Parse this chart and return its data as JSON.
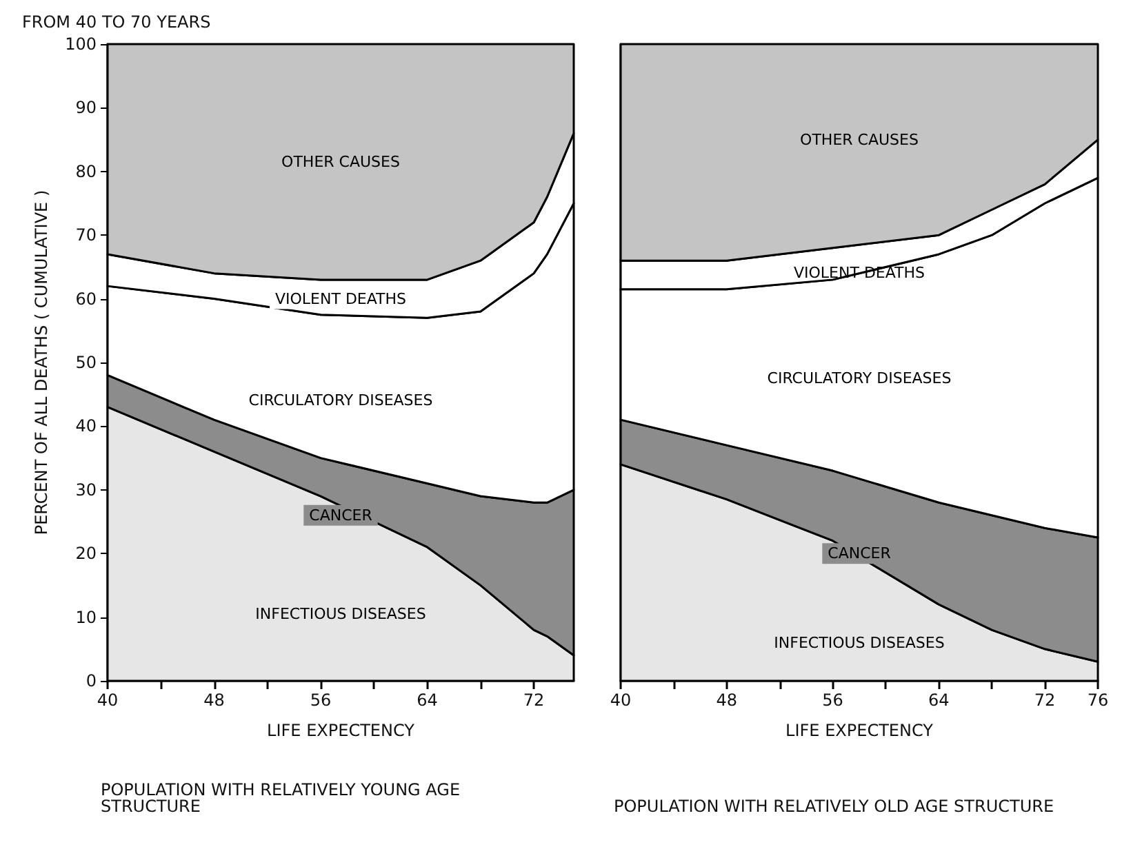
{
  "chart_data": [
    {
      "type": "area",
      "stacked": true,
      "title": "POPULATION WITH RELATIVELY YOUNG AGE STRUCTURE",
      "annotations": [
        "FROM 40 TO 70 YEARS"
      ],
      "xlabel": "LIFE EXPECTENCY",
      "ylabel": "PERCENT OF ALL DEATHS ( CUMULATIVE )",
      "x": [
        40,
        48,
        56,
        64,
        68,
        72,
        73,
        75
      ],
      "xlim": [
        40,
        75
      ],
      "xticks": [
        40,
        {
          "value": 44,
          "label": null
        },
        48,
        {
          "value": 52,
          "label": null
        },
        56,
        {
          "value": 60,
          "label": null
        },
        64,
        {
          "value": 68,
          "label": null
        },
        72
      ],
      "ylim": [
        0,
        100
      ],
      "yticks": [
        0,
        10,
        20,
        30,
        40,
        50,
        60,
        70,
        80,
        90,
        100
      ],
      "series": [
        {
          "name": "INFECTIOUS DISEASES",
          "color": "#e6e6e6",
          "values": [
            43,
            36,
            29,
            21,
            15,
            8,
            7,
            4
          ]
        },
        {
          "name": "CANCER",
          "color": "#8c8c8c",
          "values": [
            5,
            5,
            6,
            10,
            14,
            20,
            21,
            26
          ]
        },
        {
          "name": "CIRCULATORY DISEASES",
          "color": "#ffffff",
          "values": [
            14,
            19,
            22.5,
            26,
            29,
            36,
            39,
            45
          ]
        },
        {
          "name": "VIOLENT DEATHS",
          "color": "#ffffff",
          "values": [
            5,
            4,
            5.5,
            6,
            8,
            8,
            9,
            11
          ]
        },
        {
          "name": "OTHER CAUSES",
          "color": "#c4c4c4",
          "values": [
            33,
            36,
            37,
            37,
            34,
            28,
            24,
            14
          ]
        }
      ]
    },
    {
      "type": "area",
      "stacked": true,
      "title": "POPULATION WITH RELATIVELY OLD AGE STRUCTURE",
      "xlabel": "LIFE EXPECTENCY",
      "tick_labels": "x",
      "x": [
        40,
        48,
        56,
        64,
        68,
        72,
        76
      ],
      "xlim": [
        40,
        76
      ],
      "xticks": [
        40,
        {
          "value": 44,
          "label": null
        },
        48,
        {
          "value": 52,
          "label": null
        },
        56,
        {
          "value": 60,
          "label": null
        },
        64,
        {
          "value": 68,
          "label": null
        },
        72,
        76
      ],
      "ylim": [
        0,
        100
      ],
      "yticks": [
        0,
        10,
        20,
        30,
        40,
        50,
        60,
        70,
        80,
        90,
        100
      ],
      "series": [
        {
          "name": "INFECTIOUS DISEASES",
          "color": "#e6e6e6",
          "values": [
            34,
            28.5,
            22,
            12,
            8,
            5,
            3
          ]
        },
        {
          "name": "CANCER",
          "color": "#8c8c8c",
          "values": [
            7,
            8.5,
            11,
            16,
            18,
            19,
            19.5
          ]
        },
        {
          "name": "CIRCULATORY DISEASES",
          "color": "#ffffff",
          "values": [
            20.5,
            24.5,
            30,
            39,
            44,
            51,
            56.5
          ]
        },
        {
          "name": "VIOLENT DEATHS",
          "color": "#ffffff",
          "values": [
            4.5,
            4.5,
            5,
            3,
            4,
            3,
            6
          ]
        },
        {
          "name": "OTHER CAUSES",
          "color": "#c4c4c4",
          "values": [
            34,
            34,
            32,
            30,
            26,
            22,
            15
          ]
        }
      ]
    }
  ]
}
